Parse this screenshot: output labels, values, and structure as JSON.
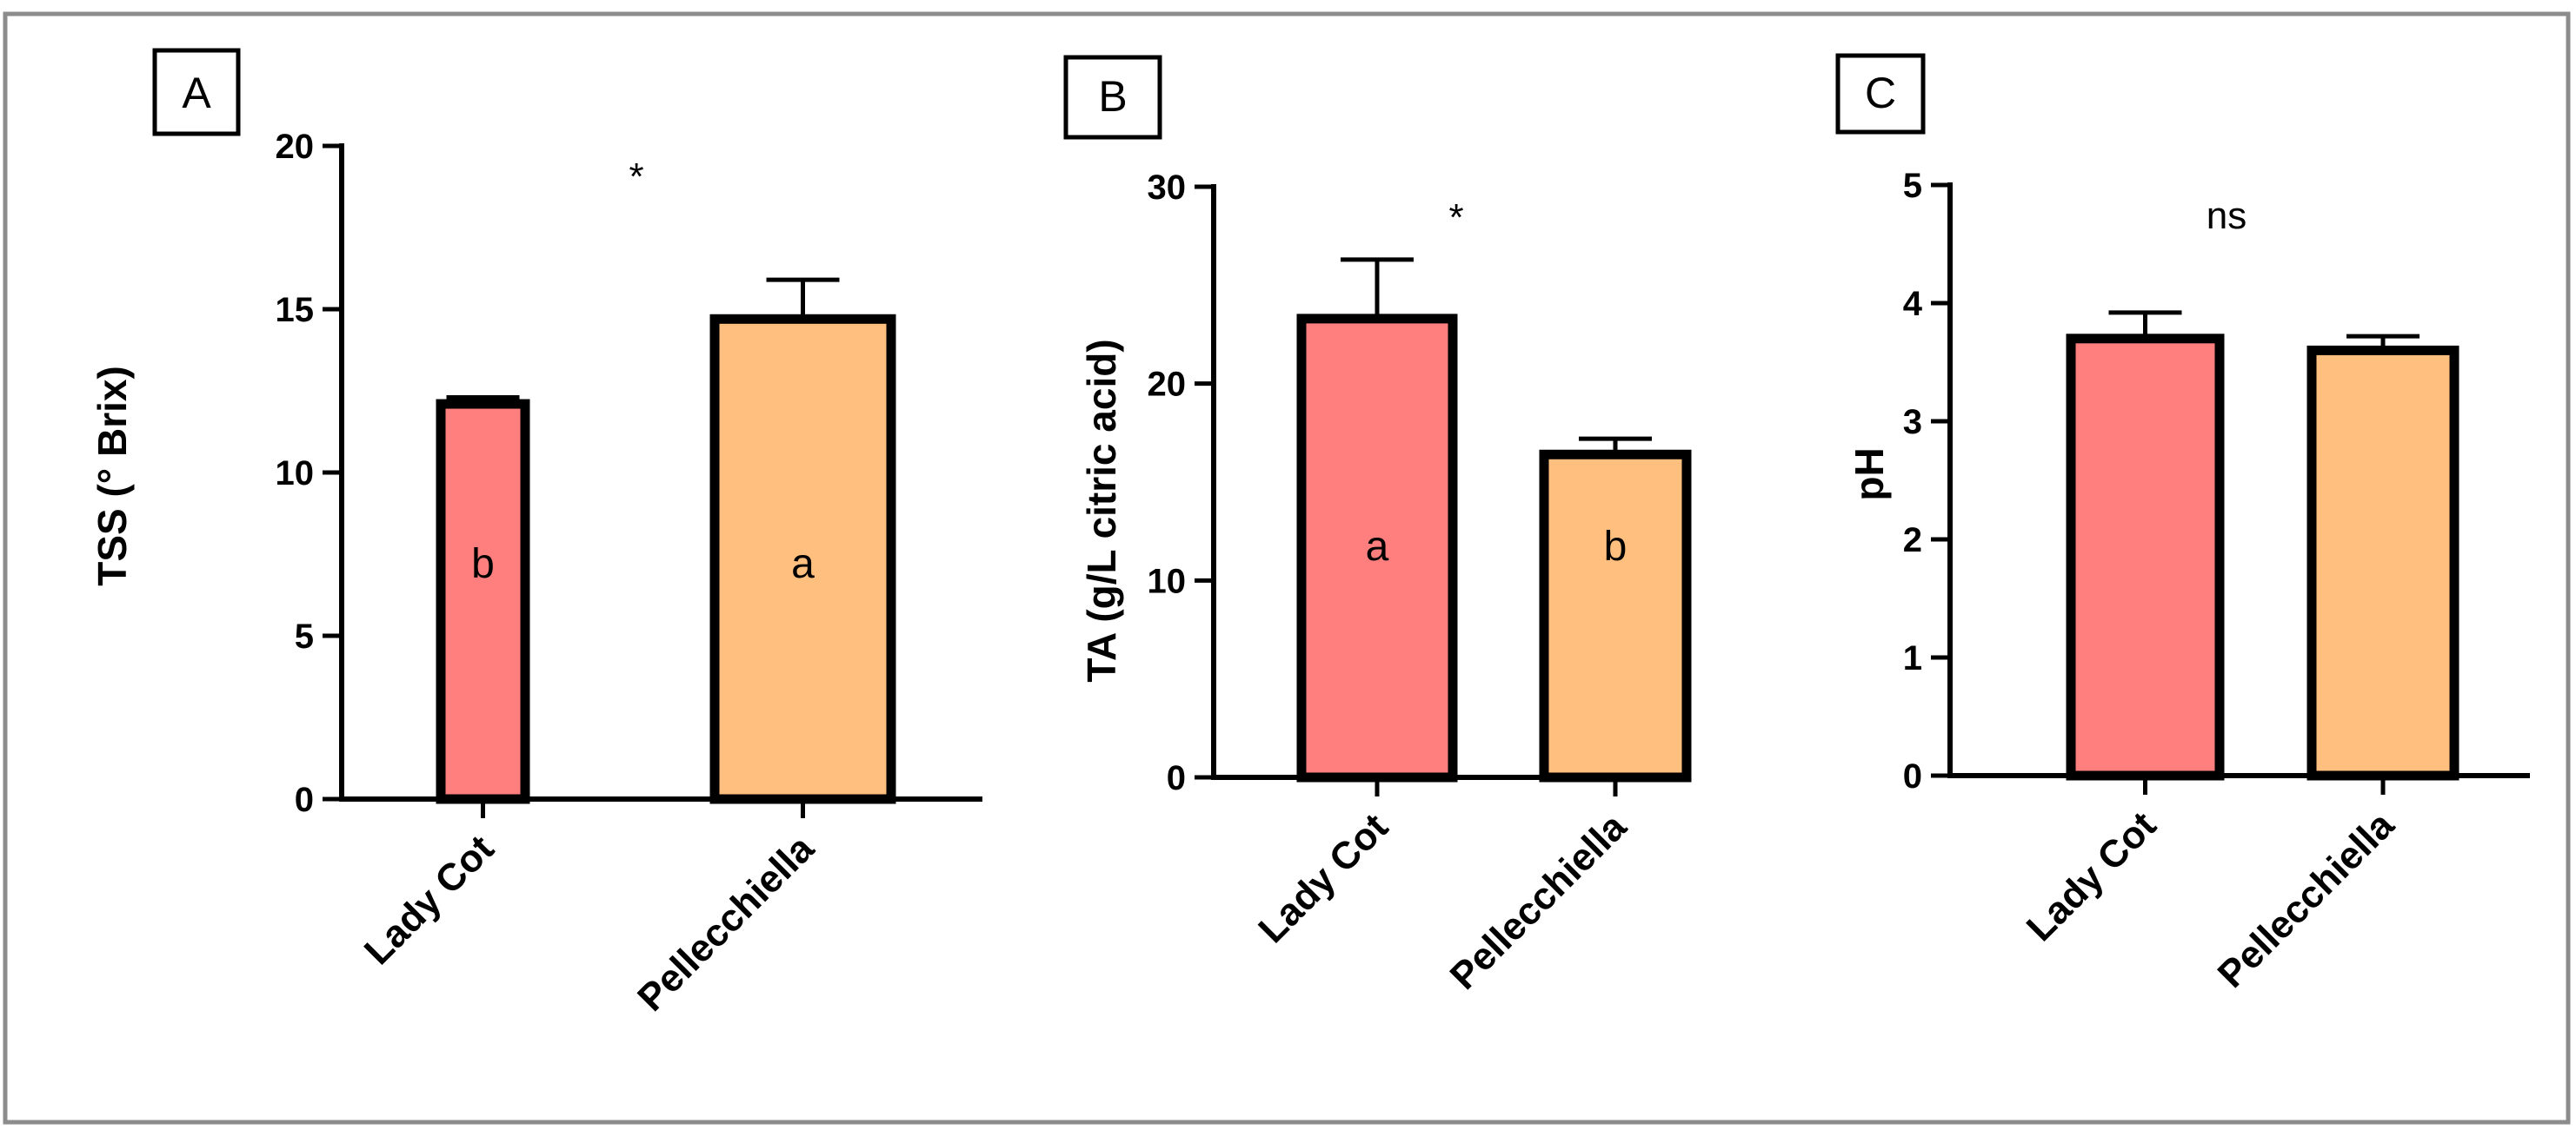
{
  "colors": {
    "lady_cot": "#FF7F7F",
    "pellecchiella": "#FFBF7F",
    "axis": "#000000",
    "frame": "#8c8c8c"
  },
  "chart_data": [
    {
      "type": "bar",
      "panel": "A",
      "categories": [
        "Lady Cot",
        "Pellecchiella"
      ],
      "values": [
        12.1,
        14.7
      ],
      "errors": [
        0.2,
        1.2
      ],
      "bar_letters": [
        "b",
        "a"
      ],
      "significance": "*",
      "ylabel": "TSS (° Brix)",
      "ylim": [
        0,
        20
      ],
      "yticks": [
        0,
        5,
        10,
        15,
        20
      ],
      "ytick_labels": [
        "0",
        "5",
        "10",
        "15",
        "20"
      ]
    },
    {
      "type": "bar",
      "panel": "B",
      "categories": [
        "Lady Cot",
        "Pellecchiella"
      ],
      "values": [
        23.3,
        16.4
      ],
      "errors": [
        3.0,
        0.8
      ],
      "bar_letters": [
        "a",
        "b"
      ],
      "significance": "*",
      "ylabel": "TA (g/L citric acid)",
      "ylim": [
        0,
        30
      ],
      "yticks": [
        0,
        10,
        20,
        30
      ],
      "ytick_labels": [
        "0",
        "10",
        "20",
        "30"
      ]
    },
    {
      "type": "bar",
      "panel": "C",
      "categories": [
        "Lady Cot",
        "Pellecchiella"
      ],
      "values": [
        3.7,
        3.6
      ],
      "errors": [
        0.22,
        0.12
      ],
      "bar_letters": [
        "",
        ""
      ],
      "significance": "ns",
      "ylabel": "pH",
      "ylim": [
        0,
        5
      ],
      "yticks": [
        0,
        1,
        2,
        3,
        4,
        5
      ],
      "ytick_labels": [
        "0",
        "1",
        "2",
        "3",
        "4",
        "5"
      ]
    }
  ]
}
